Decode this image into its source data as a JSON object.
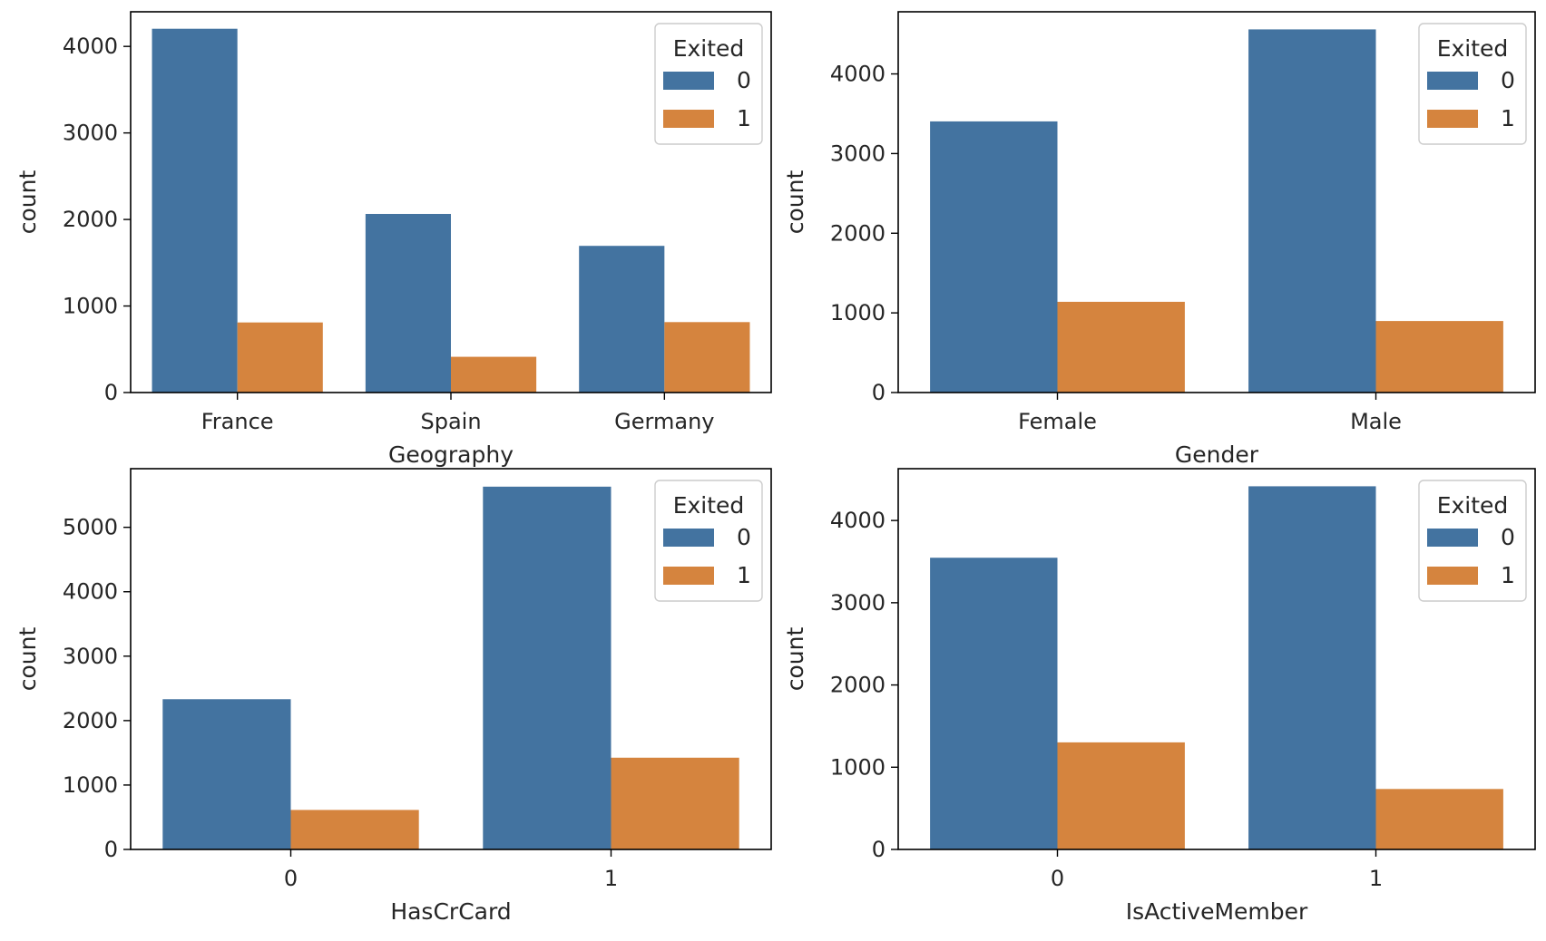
{
  "chart_data": [
    {
      "type": "bar",
      "xlabel": "Geography",
      "ylabel": "count",
      "categories": [
        "France",
        "Spain",
        "Germany"
      ],
      "series": [
        {
          "name": "0",
          "values": [
            4204,
            2064,
            1695
          ]
        },
        {
          "name": "1",
          "values": [
            810,
            413,
            814
          ]
        }
      ],
      "ylim": [
        0,
        4400
      ],
      "yticks": [
        0,
        1000,
        2000,
        3000,
        4000
      ],
      "legend": {
        "title": "Exited",
        "placement": "top-right"
      },
      "grid": false
    },
    {
      "type": "bar",
      "xlabel": "Gender",
      "ylabel": "count",
      "categories": [
        "Female",
        "Male"
      ],
      "series": [
        {
          "name": "0",
          "values": [
            3404,
            4559
          ]
        },
        {
          "name": "1",
          "values": [
            1139,
            898
          ]
        }
      ],
      "ylim": [
        0,
        4780
      ],
      "yticks": [
        0,
        1000,
        2000,
        3000,
        4000
      ],
      "legend": {
        "title": "Exited",
        "placement": "top-right"
      },
      "grid": false
    },
    {
      "type": "bar",
      "xlabel": "HasCrCard",
      "ylabel": "count",
      "categories": [
        "0",
        "1"
      ],
      "series": [
        {
          "name": "0",
          "values": [
            2332,
            5631
          ]
        },
        {
          "name": "1",
          "values": [
            613,
            1424
          ]
        }
      ],
      "ylim": [
        0,
        5910
      ],
      "yticks": [
        0,
        1000,
        2000,
        3000,
        4000,
        5000
      ],
      "legend": {
        "title": "Exited",
        "placement": "top-right"
      },
      "grid": false
    },
    {
      "type": "bar",
      "xlabel": "IsActiveMember",
      "ylabel": "count",
      "categories": [
        "0",
        "1"
      ],
      "series": [
        {
          "name": "0",
          "values": [
            3547,
            4416
          ]
        },
        {
          "name": "1",
          "values": [
            1302,
            735
          ]
        }
      ],
      "ylim": [
        0,
        4630
      ],
      "yticks": [
        0,
        1000,
        2000,
        3000,
        4000
      ],
      "legend": {
        "title": "Exited",
        "placement": "top-right"
      },
      "grid": false
    }
  ],
  "colors": {
    "series_0": "#4373a0",
    "series_1": "#d5843e",
    "axis": "#000000",
    "text": "#262626",
    "legend_border": "#cccccc"
  }
}
